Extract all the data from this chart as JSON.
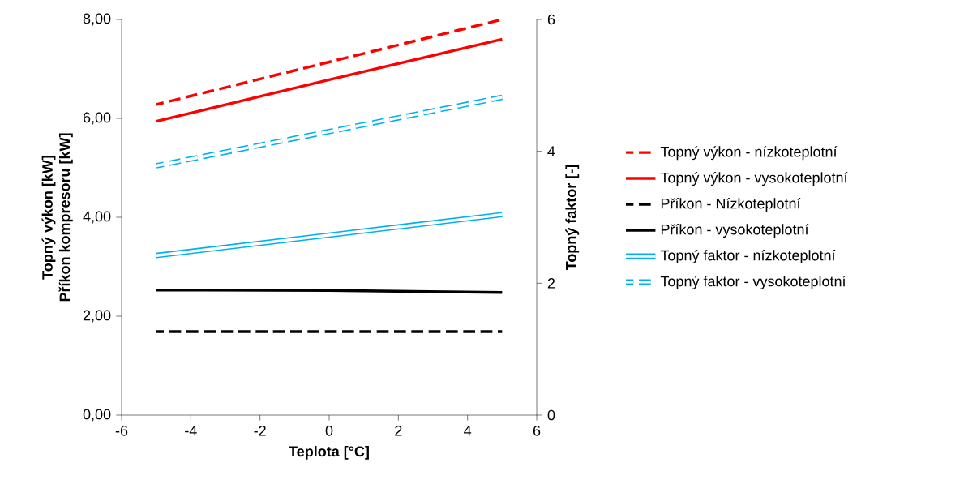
{
  "chart_data": {
    "type": "line",
    "xlabel": "Teplota [°C]",
    "ylabel": "Topný výkon [kW]\nPříkon kompresoru [kW]",
    "y2label": "Topný faktor [-]",
    "x": [
      -5,
      0,
      5
    ],
    "series": [
      {
        "name": "Topný výkon - nízkoteplotní",
        "color": "#ff0000",
        "line_style": "dashed",
        "values": [
          6.28,
          7.14,
          8.0
        ]
      },
      {
        "name": "Topný výkon - vysokoteplotní",
        "color": "#ff0000",
        "line_style": "solid",
        "values": [
          5.94,
          6.78,
          7.6
        ]
      },
      {
        "name": "Příkon - Nízkoteplotní",
        "color": "#000000",
        "line_style": "dashed",
        "values": [
          1.69,
          1.69,
          1.69
        ]
      },
      {
        "name": "Příkon - vysokoteplotní",
        "color": "#000000",
        "line_style": "solid",
        "values": [
          2.53,
          2.52,
          2.48
        ]
      },
      {
        "name": "Topný faktor - nízkoteplotní",
        "color": "#00b0f0",
        "line_style": "solid",
        "axis": "y2",
        "values": [
          2.42,
          2.73,
          3.04
        ]
      },
      {
        "name": "Topný faktor - vysokoteplotní",
        "color": "#00b0f0",
        "line_style": "dashed",
        "axis": "y2",
        "values": [
          3.78,
          4.3,
          4.82
        ]
      }
    ],
    "xlim": [
      -6,
      6
    ],
    "xticks": [
      -6,
      -4,
      -2,
      0,
      2,
      4,
      6
    ],
    "ylim": [
      0,
      8
    ],
    "yticks": [
      {
        "value": 0,
        "label": "0,00"
      },
      {
        "value": 2,
        "label": "2,00"
      },
      {
        "value": 4,
        "label": "4,00"
      },
      {
        "value": 6,
        "label": "6,00"
      },
      {
        "value": 8,
        "label": "8,00"
      }
    ],
    "y2lim": [
      0,
      6
    ],
    "y2ticks": [
      0,
      2,
      4,
      6
    ],
    "grid": false,
    "legend": "right",
    "marker": "none"
  }
}
